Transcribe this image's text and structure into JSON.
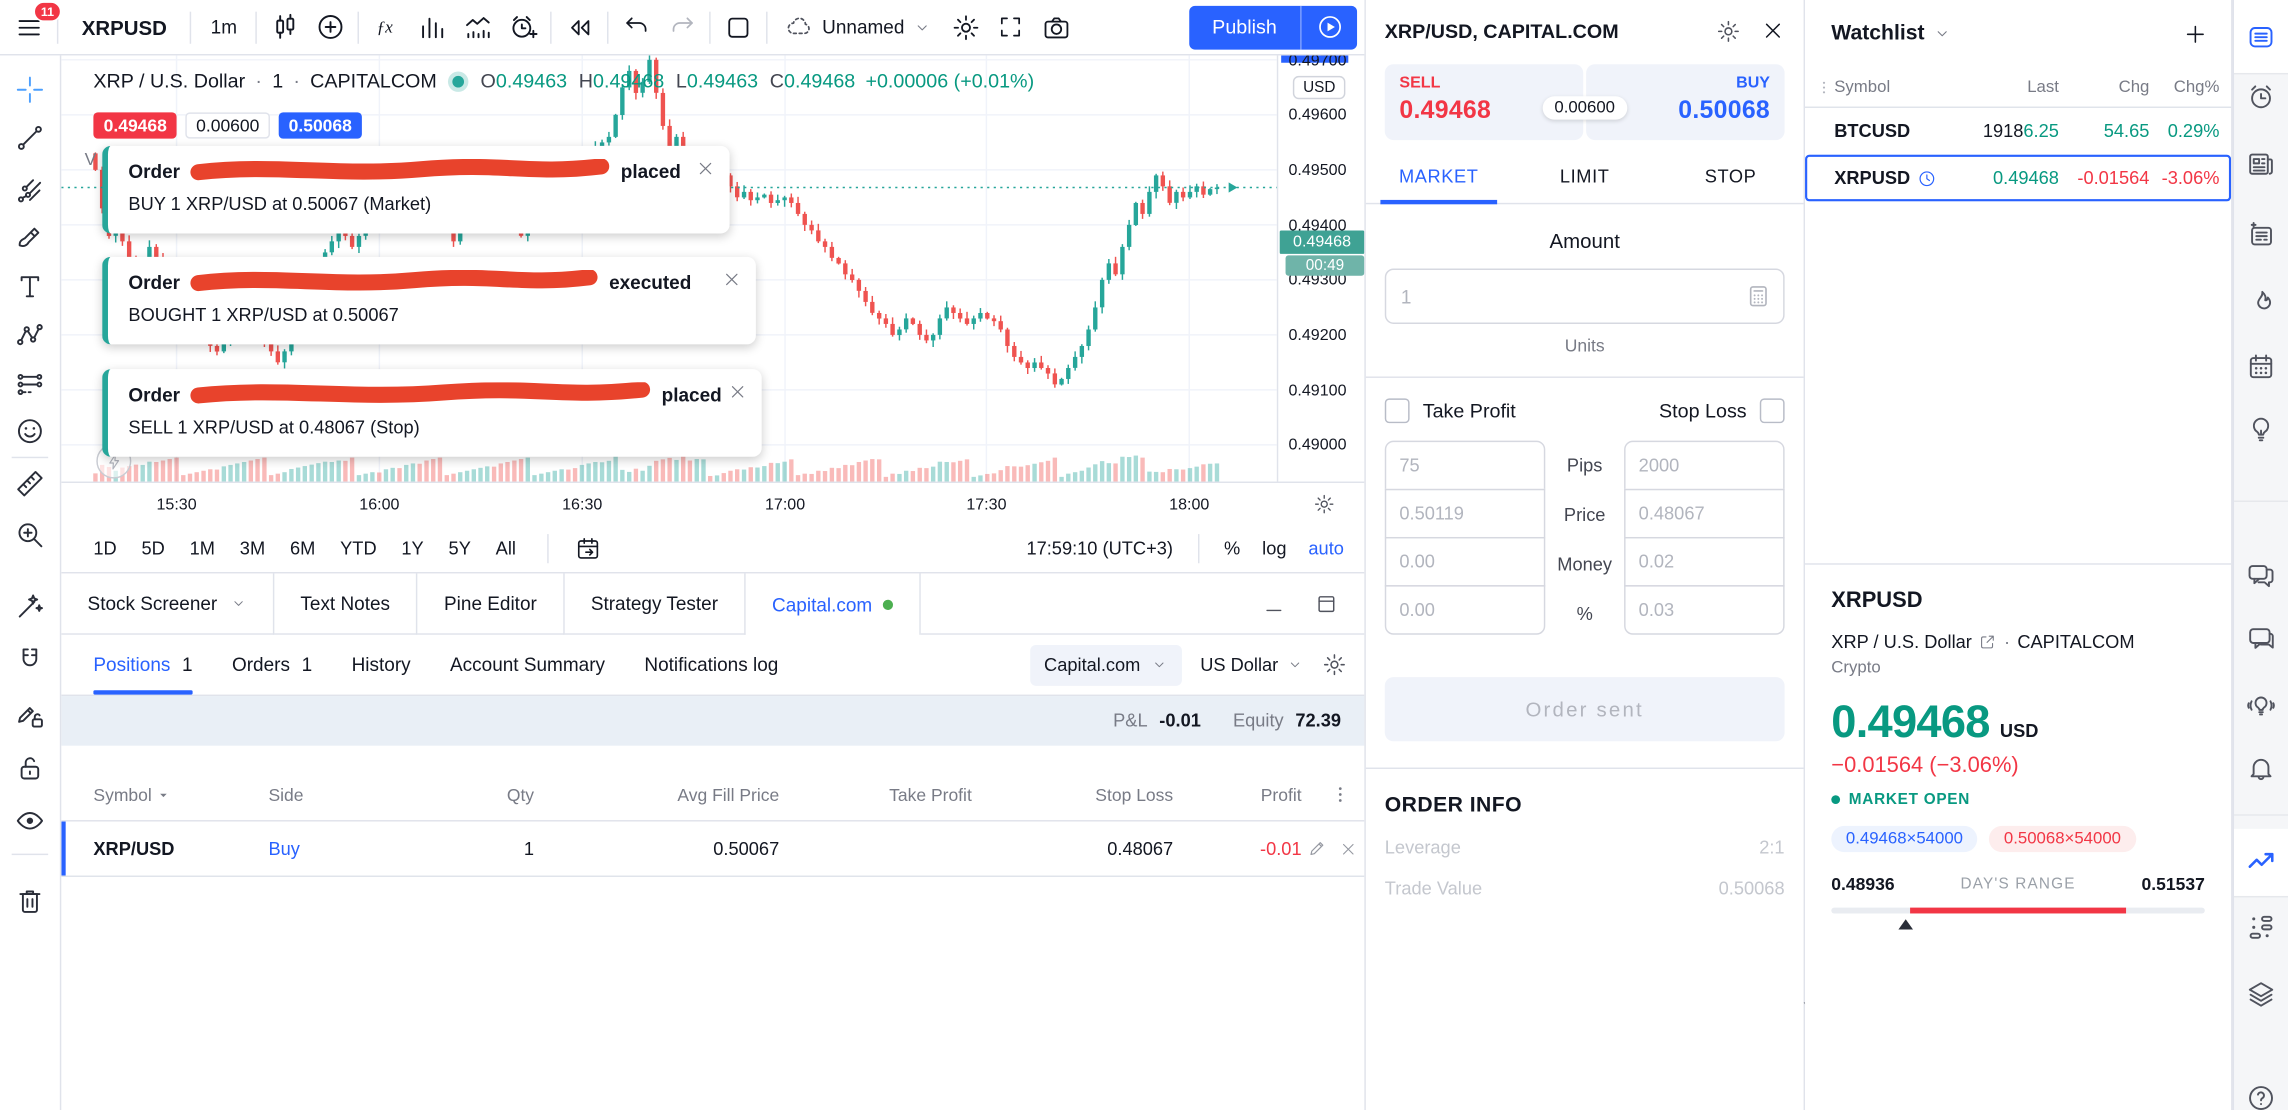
{
  "toolbar": {
    "menu_badge": "11",
    "symbol": "XRPUSD",
    "interval": "1m",
    "layout_name": "Unnamed",
    "publish": "Publish"
  },
  "chart": {
    "legend": {
      "title": "XRP / U.S. Dollar",
      "interval": "1",
      "exchange": "CAPITALCOM",
      "ohlc": [
        [
          "O",
          "0.49463"
        ],
        [
          "H",
          "0.49468"
        ],
        [
          "L",
          "0.49463"
        ],
        [
          "C",
          "0.49468"
        ]
      ],
      "change": "+0.00006 (+0.01%)",
      "volume_label": "V"
    },
    "bid": "0.49468",
    "spread": "0.00600",
    "ask": "0.50068",
    "price_axis": {
      "currency": "USD",
      "labels": [
        "0.49700",
        "0.49600",
        "0.49500",
        "0.49400",
        "0.49300",
        "0.49200",
        "0.49100",
        "0.49000"
      ],
      "last": "0.49468",
      "countdown": "00:49"
    },
    "time_axis": [
      "15:30",
      "16:00",
      "16:30",
      "17:00",
      "17:30",
      "18:00"
    ],
    "chart_data": {
      "type": "candlestick",
      "symbol": "XRPUSD",
      "interval": "1m",
      "start_time": "15:18",
      "last_price": 0.49468,
      "ylim": [
        0.49,
        0.497
      ],
      "closes_x100000": [
        49500,
        49430,
        49380,
        49400,
        49370,
        49340,
        49310,
        49330,
        49360,
        49340,
        49320,
        49300,
        49280,
        49260,
        49240,
        49220,
        49200,
        49180,
        49170,
        49190,
        49210,
        49230,
        49250,
        49230,
        49210,
        49190,
        49170,
        49150,
        49170,
        49200,
        49230,
        49260,
        49290,
        49320,
        49350,
        49370,
        49390,
        49380,
        49360,
        49380,
        49400,
        49420,
        49410,
        49430,
        49450,
        49440,
        49460,
        49480,
        49470,
        49450,
        49430,
        49410,
        49390,
        49370,
        49390,
        49410,
        49430,
        49450,
        49470,
        49460,
        49440,
        49420,
        49400,
        49380,
        49400,
        49420,
        49440,
        49460,
        49480,
        49500,
        49490,
        49480,
        49500,
        49520,
        49540,
        49550,
        49560,
        49600,
        49650,
        49680,
        49640,
        49660,
        49700,
        49640,
        49580,
        49520,
        49560,
        49500,
        49480,
        49500,
        49510,
        49495,
        49505,
        49490,
        49470,
        49450,
        49460,
        49445,
        49450,
        49455,
        49440,
        49445,
        49450,
        49440,
        49420,
        49400,
        49390,
        49370,
        49360,
        49340,
        49330,
        49310,
        49300,
        49280,
        49260,
        49240,
        49230,
        49220,
        49200,
        49210,
        49230,
        49220,
        49200,
        49190,
        49200,
        49230,
        49250,
        49240,
        49230,
        49220,
        49230,
        49240,
        49230,
        49225,
        49210,
        49180,
        49160,
        49150,
        49140,
        49150,
        49140,
        49130,
        49110,
        49120,
        49140,
        49160,
        49180,
        49210,
        49250,
        49300,
        49330,
        49310,
        49360,
        49400,
        49440,
        49420,
        49460,
        49490,
        49470,
        49440,
        49460,
        49450,
        49460,
        49470,
        49455,
        49465,
        49468
      ]
    }
  },
  "notifications": [
    {
      "prefix": "Order",
      "status": "placed",
      "body": "BUY 1 XRP/USD at 0.50067  (Market)"
    },
    {
      "prefix": "Order",
      "status": "executed",
      "body": "BOUGHT 1 XRP/USD at 0.50067"
    },
    {
      "prefix": "Order",
      "status": "placed",
      "body": "SELL 1 XRP/USD at 0.48067  (Stop)"
    }
  ],
  "range_bar": {
    "ranges": [
      "1D",
      "5D",
      "1M",
      "3M",
      "6M",
      "YTD",
      "1Y",
      "5Y",
      "All"
    ],
    "clock": "17:59:10 (UTC+3)",
    "percent": "%",
    "log": "log",
    "auto": "auto"
  },
  "bottom_panel": {
    "tabs": [
      "Stock Screener",
      "Text Notes",
      "Pine Editor",
      "Strategy Tester",
      "Capital.com"
    ],
    "active_tab": "Capital.com",
    "subtabs": [
      {
        "label": "Positions",
        "count": "1",
        "active": true
      },
      {
        "label": "Orders",
        "count": "1"
      },
      {
        "label": "History"
      },
      {
        "label": "Account Summary"
      },
      {
        "label": "Notifications log"
      }
    ],
    "account": "Capital.com",
    "currency": "US Dollar",
    "pnl_label": "P&L",
    "pnl": "-0.01",
    "equity_label": "Equity",
    "equity": "72.39",
    "columns": [
      "Symbol",
      "Side",
      "Qty",
      "Avg Fill Price",
      "Take Profit",
      "Stop Loss",
      "Profit"
    ],
    "positions": [
      {
        "symbol": "XRP/USD",
        "side": "Buy",
        "qty": "1",
        "avg_fill": "0.50067",
        "take_profit": "",
        "stop_loss": "0.48067",
        "profit": "-0.01"
      }
    ]
  },
  "order_panel": {
    "title": "XRP/USD, CAPITAL.COM",
    "sell_label": "SELL",
    "sell": "0.49468",
    "spread": "0.00600",
    "buy_label": "BUY",
    "buy": "0.50068",
    "tabs": [
      "MARKET",
      "LIMIT",
      "STOP"
    ],
    "active_tab": "MARKET",
    "amount_label": "Amount",
    "amount_placeholder": "1",
    "amount_unit": "Units",
    "tp_label": "Take Profit",
    "sl_label": "Stop Loss",
    "rows": [
      {
        "tp": "75",
        "label": "Pips",
        "sl": "2000"
      },
      {
        "tp": "0.50119",
        "label": "Price",
        "sl": "0.48067"
      },
      {
        "tp": "0.00",
        "label": "Money",
        "sl": "0.02"
      },
      {
        "tp": "0.00",
        "label": "%",
        "sl": "0.03"
      }
    ],
    "submit": "Order sent",
    "info_title": "ORDER INFO",
    "info": [
      {
        "label": "Leverage",
        "value": "2:1"
      },
      {
        "label": "Trade Value",
        "value": "0.50068"
      }
    ]
  },
  "watchlist": {
    "title": "Watchlist",
    "columns": [
      "Symbol",
      "Last",
      "Chg",
      "Chg%"
    ],
    "rows": [
      {
        "symbol": "BTCUSD",
        "last_plain": "1918",
        "last_colored": "6.25",
        "chg": "54.65",
        "chgp": "0.29%",
        "dir": "up",
        "selected": false,
        "clock": false
      },
      {
        "symbol": "XRPUSD",
        "last_plain": "",
        "last_colored": "0.49468",
        "chg": "-0.01564",
        "chgp": "-3.06%",
        "dir": "down",
        "last_dir": "up",
        "selected": true,
        "clock": true
      }
    ]
  },
  "symbol_detail": {
    "symbol": "XRPUSD",
    "name": "XRP / U.S. Dollar",
    "exchange": "CAPITALCOM",
    "type": "Crypto",
    "price": "0.49468",
    "currency": "USD",
    "change": "−0.01564 (−3.06%)",
    "status": "MARKET OPEN",
    "bid_size": "0.49468×54000",
    "ask_size": "0.50068×54000",
    "range_low": "0.48936",
    "range_label": "DAY'S RANGE",
    "range_high": "0.51537",
    "range_fill_start": 0.21,
    "range_fill_end": 0.79,
    "range_marker": 0.2
  },
  "left_toolbar": [
    "crosshair-icon",
    "trend-line-icon",
    "pitchfork-icon",
    "brush-icon",
    "text-icon",
    "pattern-icon",
    "forecast-icon",
    "emoji-icon",
    "ruler-icon",
    "zoom-in-icon",
    "magic-icon",
    "magnet-icon",
    "drawing-lock-icon",
    "lock-all-icon",
    "hide-drawings-icon",
    "remove-drawings-icon"
  ],
  "right_sidebar": [
    "watchlist-icon",
    "alerts-icon",
    "news-icon",
    "notes-icon",
    "hotlists-icon",
    "calendar-icon",
    "ideas-icon",
    "chats-icon",
    "private-chat-icon",
    "streams-icon",
    "notifications-icon",
    "trading-panel-icon",
    "object-tree-icon",
    "layouts-icon",
    "help-icon"
  ],
  "colors": {
    "up": "#26a69a",
    "down": "#ef5350",
    "accent": "#2962ff",
    "sell_red": "#f23645",
    "green": "#089981",
    "scribble": "#e8432c"
  }
}
